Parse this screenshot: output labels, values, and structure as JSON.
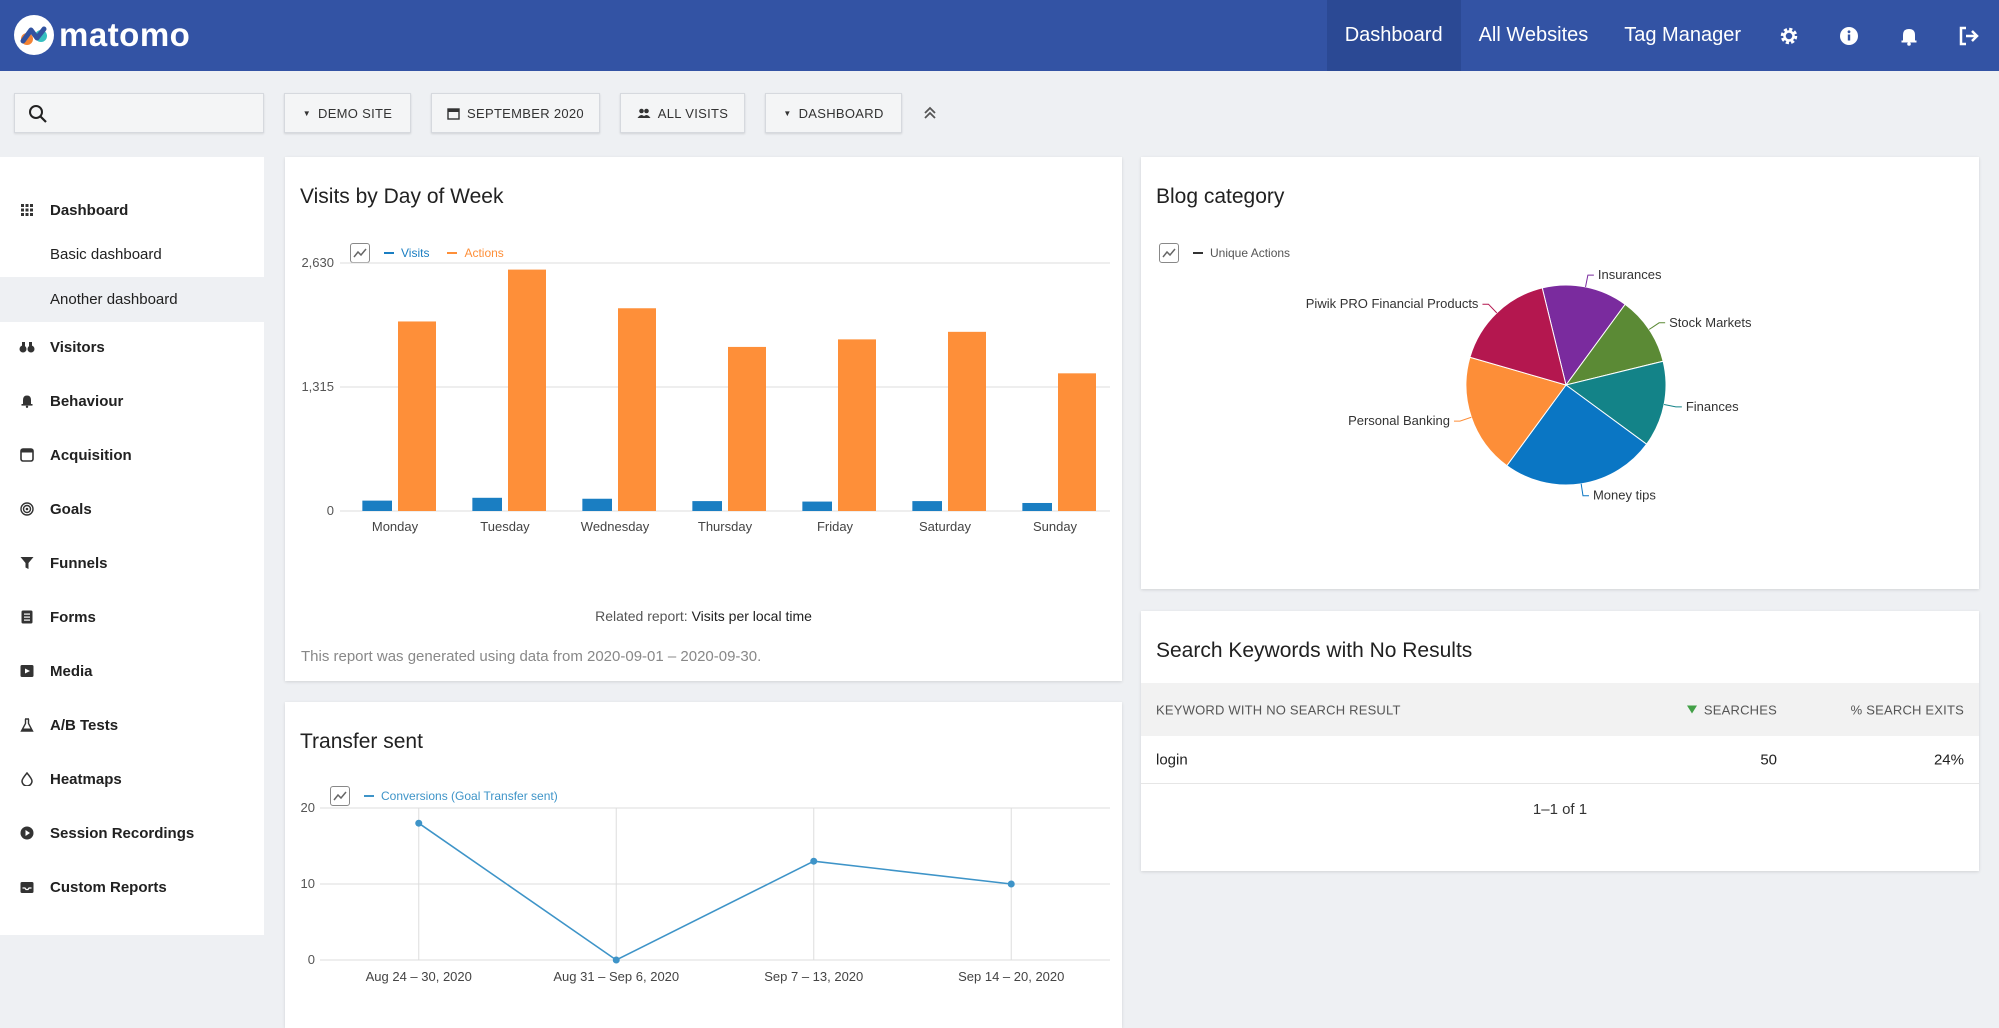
{
  "brand": {
    "name": "matomo"
  },
  "topnav": {
    "items": [
      "Dashboard",
      "All Websites",
      "Tag Manager"
    ],
    "icons": [
      "gear-icon",
      "info-icon",
      "bell-icon",
      "logout-icon"
    ]
  },
  "toolbar": {
    "search_placeholder": "",
    "site_selector": "DEMO SITE",
    "period_selector": "SEPTEMBER 2020",
    "segment_selector": "ALL VISITS",
    "dashboard_selector": "DASHBOARD"
  },
  "sidebar": {
    "dashboard": "Dashboard",
    "dashboard_sub": [
      "Basic dashboard",
      "Another dashboard"
    ],
    "items": [
      "Visitors",
      "Behaviour",
      "Acquisition",
      "Goals",
      "Funnels",
      "Forms",
      "Media",
      "A/B Tests",
      "Heatmaps",
      "Session Recordings",
      "Custom Reports"
    ]
  },
  "widgets": {
    "visits_by_day": {
      "title": "Visits by Day of Week",
      "related_label": "Related report:",
      "related_link": "Visits per local time",
      "footnote": "This report was generated using data from 2020-09-01 – 2020-09-30."
    },
    "transfer_sent": {
      "title": "Transfer sent"
    },
    "blog_category": {
      "title": "Blog category"
    },
    "search_keywords": {
      "title": "Search Keywords with No Results",
      "columns": [
        "KEYWORD WITH NO SEARCH RESULT",
        "SEARCHES",
        "% SEARCH EXITS"
      ],
      "rows": [
        {
          "keyword": "login",
          "searches": "50",
          "exits": "24%"
        }
      ],
      "pager": "1–1 of 1"
    }
  },
  "chart_data": [
    {
      "type": "bar",
      "categories": [
        "Monday",
        "Tuesday",
        "Wednesday",
        "Thursday",
        "Friday",
        "Saturday",
        "Sunday"
      ],
      "series": [
        {
          "name": "Visits",
          "color": "#1a7ec2",
          "values": [
            110,
            140,
            130,
            105,
            100,
            105,
            85
          ]
        },
        {
          "name": "Actions",
          "color": "#fe8f39",
          "values": [
            2010,
            2560,
            2150,
            1740,
            1820,
            1900,
            1460
          ]
        }
      ],
      "yticks": [
        "0",
        "1,315",
        "2,630"
      ],
      "ylim": [
        0,
        2630
      ],
      "grid": true,
      "legend": "top-left"
    },
    {
      "type": "line",
      "categories": [
        "Aug 24 – 30, 2020",
        "Aug 31 – Sep 6, 2020",
        "Sep 7 – 13, 2020",
        "Sep 14 – 20, 2020"
      ],
      "series": [
        {
          "name": "Conversions (Goal Transfer sent)",
          "color": "#3e94c8",
          "values": [
            18,
            0,
            13,
            10
          ]
        }
      ],
      "yticks": [
        "0",
        "10",
        "20"
      ],
      "ylim": [
        0,
        20
      ],
      "grid": true,
      "legend": "top-left"
    },
    {
      "type": "pie",
      "series_name": "Unique Actions",
      "slices": [
        {
          "label": "Insurances",
          "value": 13.9,
          "color": "#7a2b9e"
        },
        {
          "label": "Stock Markets",
          "value": 11.1,
          "color": "#5b8a35"
        },
        {
          "label": "Finances",
          "value": 13.9,
          "color": "#138388"
        },
        {
          "label": "Money tips",
          "value": 25,
          "color": "#0a76c4"
        },
        {
          "label": "Personal Banking",
          "value": 19.4,
          "color": "#fd8e38"
        },
        {
          "label": "Piwik PRO Financial Products",
          "value": 16.7,
          "color": "#b4174f"
        }
      ]
    }
  ]
}
